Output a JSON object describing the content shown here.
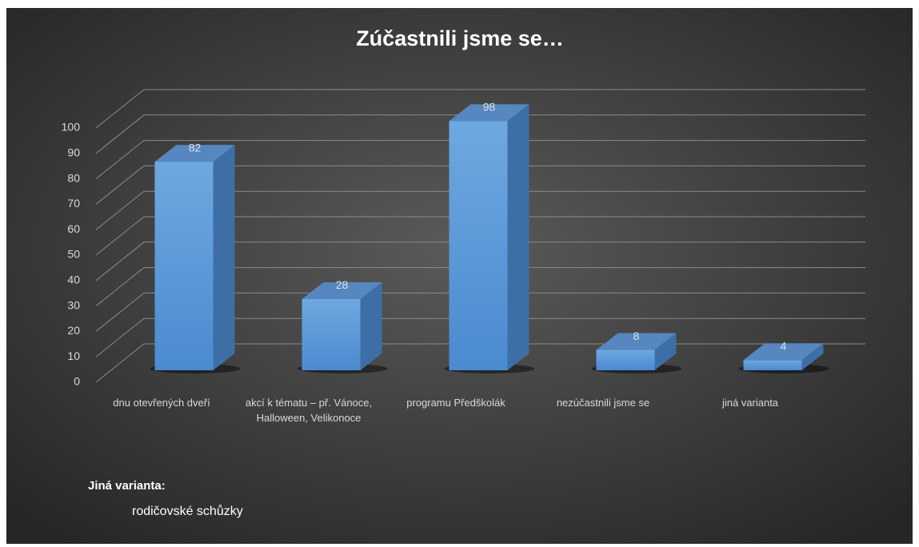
{
  "chart_data": {
    "type": "bar3d",
    "title": "Zúčastnili jsme se…",
    "categories": [
      "dnu otevřených dveří",
      "akcí k tématu – př. Vánoce, Halloween, Velikonoce",
      "programu Předškolák",
      "nezúčastnili jsme se",
      "jiná varianta"
    ],
    "values": [
      82,
      28,
      98,
      8,
      4
    ],
    "color": "#5b9bd5",
    "ylim": [
      0,
      100
    ],
    "yticks": [
      0,
      10,
      20,
      30,
      40,
      50,
      60,
      70,
      80,
      90,
      100
    ],
    "grid": true,
    "note_title": "Jiná varianta:",
    "note_text": "rodičovské schůzky"
  }
}
